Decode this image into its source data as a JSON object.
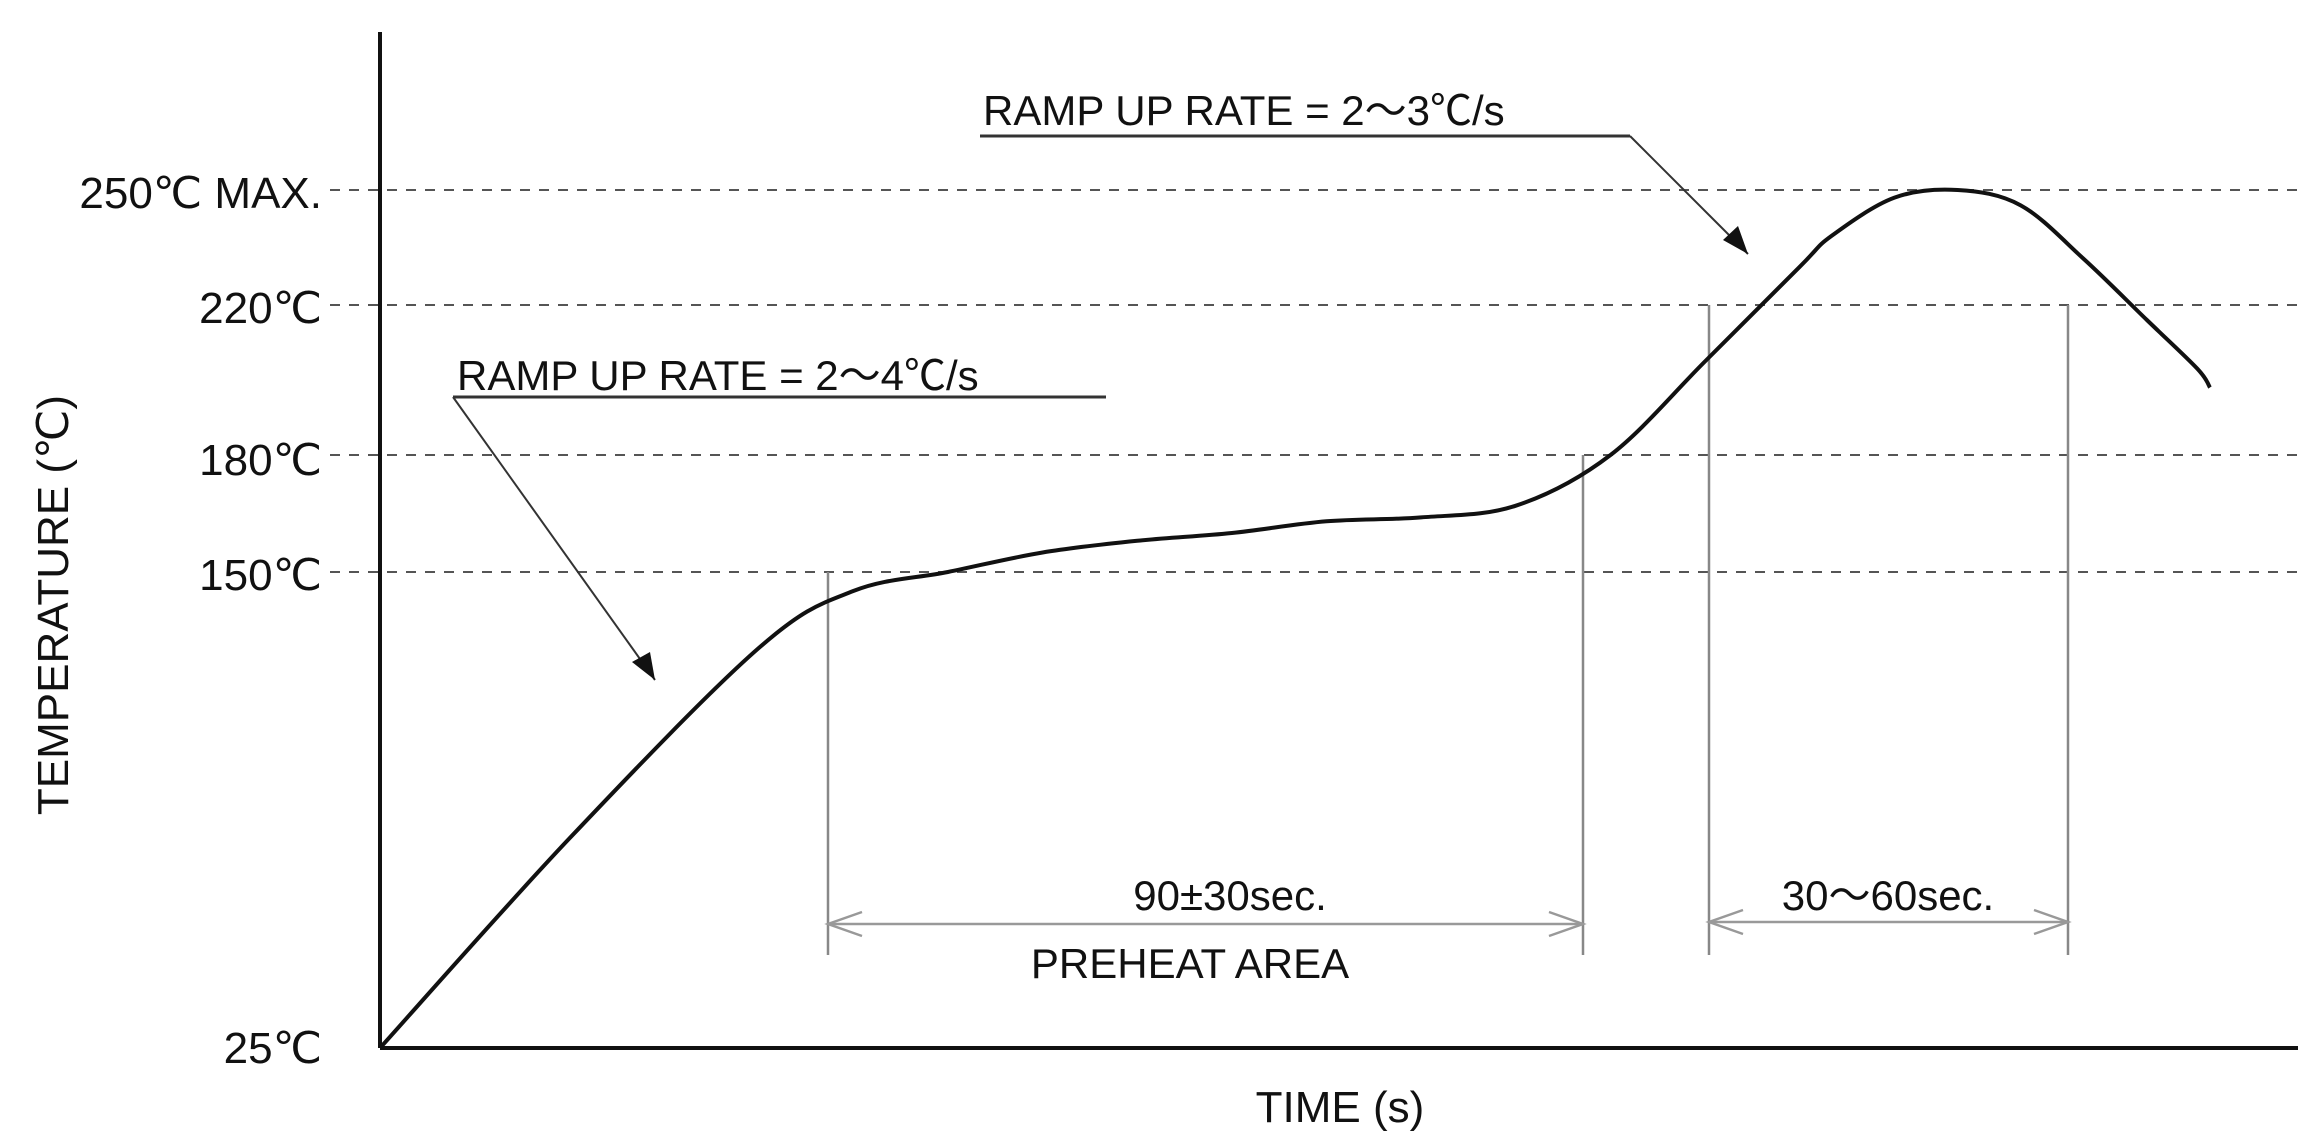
{
  "chart_data": {
    "type": "line",
    "xlabel": "TIME (s)",
    "ylabel": "TEMPERATURE (℃)",
    "y_ticks": [
      {
        "value": 25,
        "label": "25℃"
      },
      {
        "value": 150,
        "label": "150℃"
      },
      {
        "value": 180,
        "label": "180℃"
      },
      {
        "value": 220,
        "label": "220℃"
      },
      {
        "value": 250,
        "label": "250℃ MAX."
      }
    ],
    "grid": "dashed horizontal lines at 150, 180, 220 and 250",
    "series": [
      {
        "x": [
          0,
          30,
          60,
          75,
          90,
          105,
          120,
          135,
          150,
          165,
          180,
          195,
          210,
          225,
          230,
          240,
          250,
          260,
          270,
          280,
          288,
          290
        ],
        "y": [
          25,
          80,
          130,
          145,
          150,
          155,
          158,
          160,
          163,
          164,
          167,
          180,
          205,
          230,
          238,
          248,
          250,
          246,
          232,
          216,
          203,
          198
        ]
      }
    ],
    "annotations": {
      "ramp_up_1": "RAMP UP RATE = 2～4℃/s",
      "ramp_up_2": "RAMP UP RATE = 2～3℃/s",
      "preheat_time": "90±30sec.",
      "preheat_area": "PREHEAT AREA",
      "reflow_time": "30～60sec."
    }
  }
}
